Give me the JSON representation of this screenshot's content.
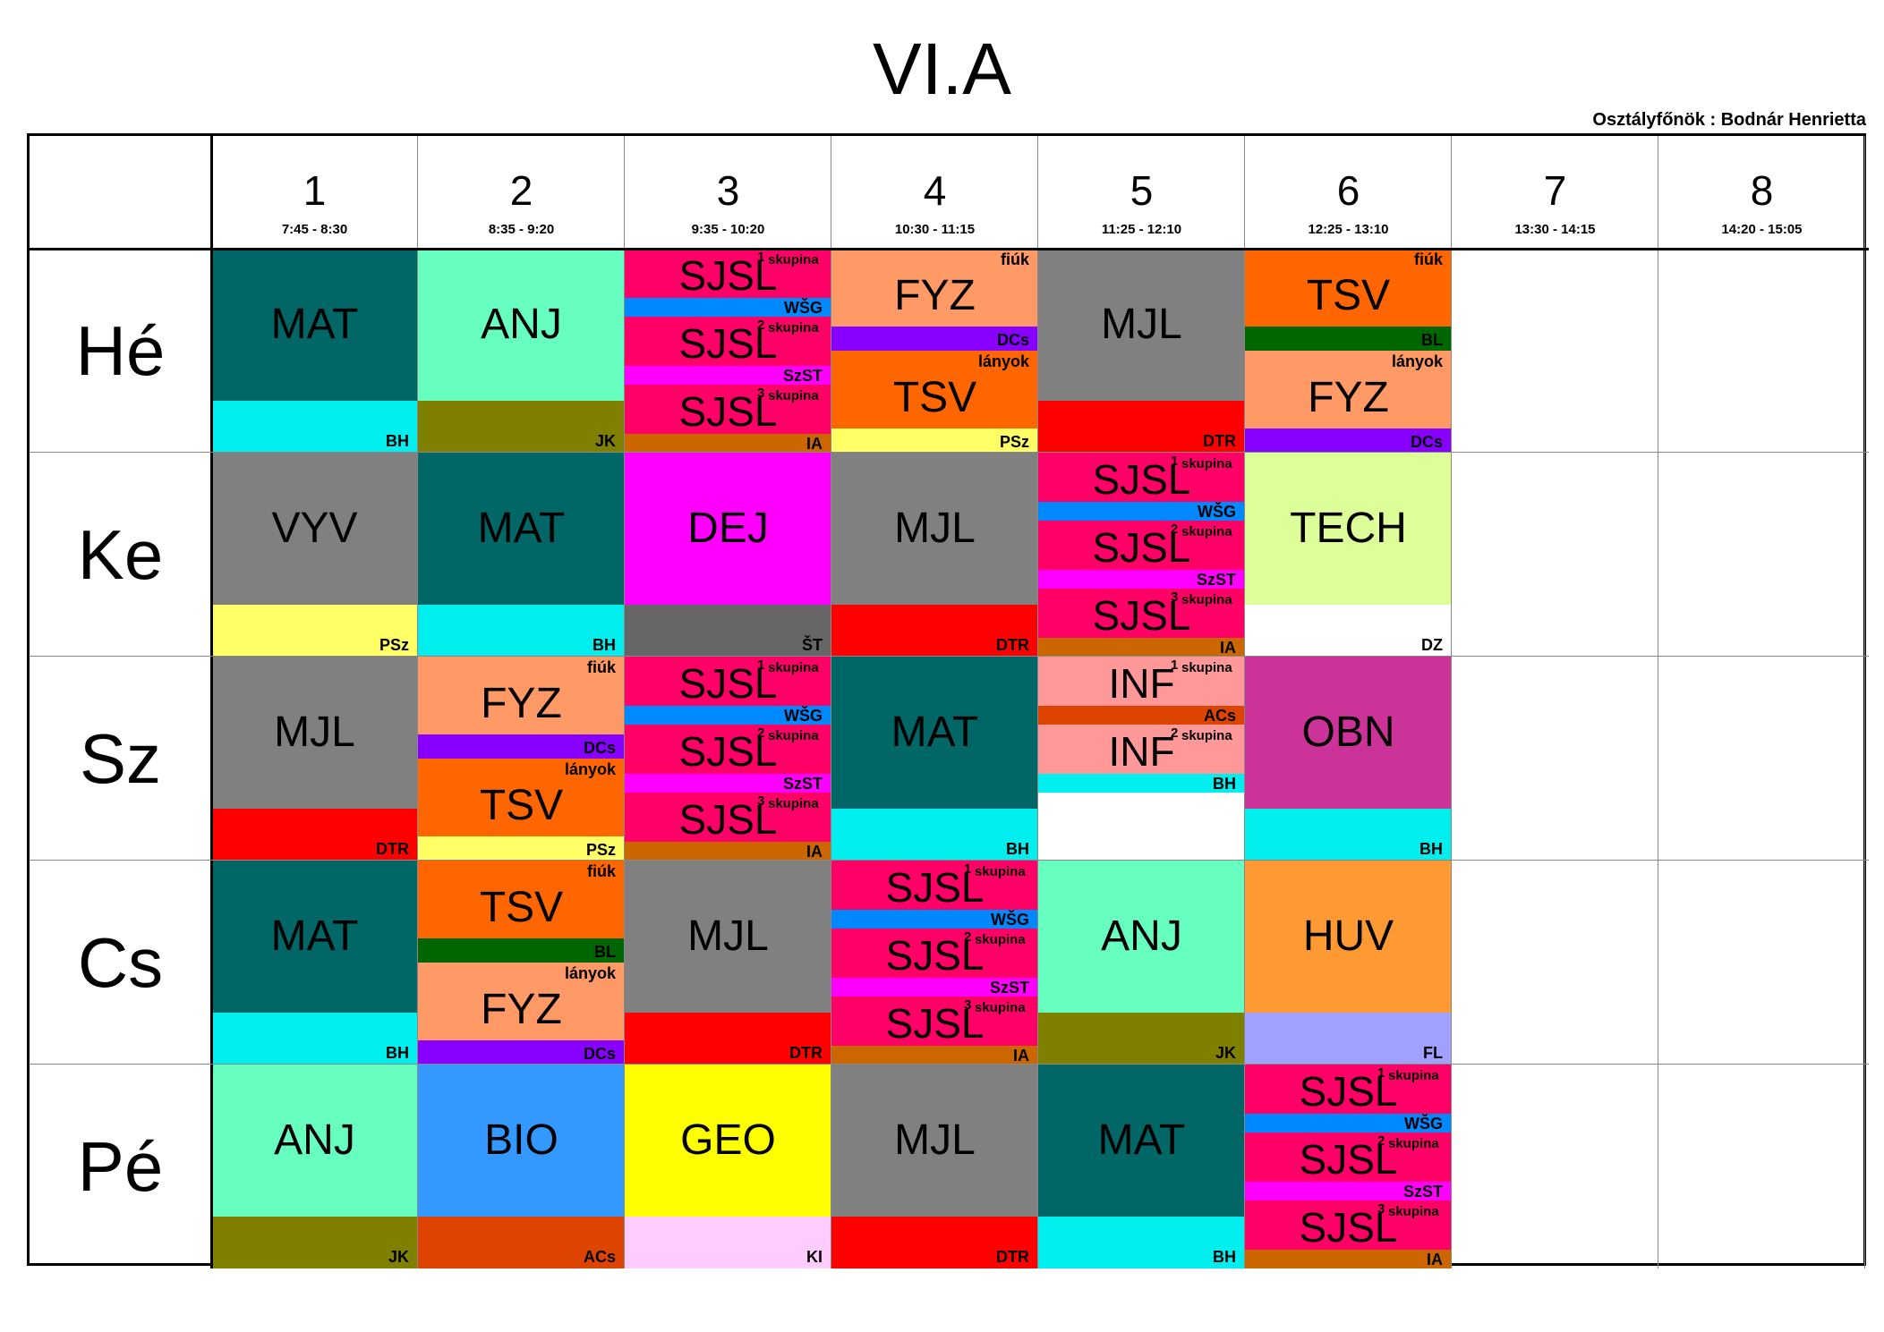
{
  "title": "VI.A",
  "class_teacher": "Osztályfőnök : Bodnár Henrietta",
  "periods": [
    {
      "num": "1",
      "time": "7:45 - 8:30"
    },
    {
      "num": "2",
      "time": "8:35 - 9:20"
    },
    {
      "num": "3",
      "time": "9:35 - 10:20"
    },
    {
      "num": "4",
      "time": "10:30 - 11:15"
    },
    {
      "num": "5",
      "time": "11:25 - 12:10"
    },
    {
      "num": "6",
      "time": "12:25 - 13:10"
    },
    {
      "num": "7",
      "time": "13:30 - 14:15"
    },
    {
      "num": "8",
      "time": "14:20 - 15:05"
    }
  ],
  "days": [
    "Hé",
    "Ke",
    "Sz",
    "Cs",
    "Pé"
  ],
  "group_label": "skupina",
  "colors": {
    "MAT": "#006666",
    "ANJ": "#66ffc0",
    "SJSL": "#ff0066",
    "FYZ": "#ff9966",
    "TSV": "#ff6600",
    "MJL": "#808080",
    "VYV": "#808080",
    "DEJ": "#ff00ff",
    "TECH": "#ddff99",
    "INF": "#ff9999",
    "OBN": "#cc3399",
    "HUV": "#ff9933",
    "BIO": "#3399ff",
    "GEO": "#ffff00",
    "BH": "#00eeee",
    "JK": "#808000",
    "DTR": "#ff0000",
    "PSz": "#ffff66",
    "DCs": "#8800ff",
    "BL": "#006600",
    "WŠG": "#0088ff",
    "SzST": "#ff00ff",
    "IA": "#cc6600",
    "ŠT": "#666666",
    "DZ": "#ffffff",
    "ACs": "#dd4400",
    "FL": "#a0a0ff",
    "KI": "#ffccff"
  },
  "lessons": [
    {
      "day": 0,
      "period": 0,
      "type": "single",
      "subject": "MAT",
      "teacher": "BH"
    },
    {
      "day": 0,
      "period": 1,
      "type": "single",
      "subject": "ANJ",
      "teacher": "JK"
    },
    {
      "day": 0,
      "period": 2,
      "type": "groups3",
      "groups": [
        {
          "num": "1",
          "subject": "SJSL",
          "teacher": "WŠG"
        },
        {
          "num": "2",
          "subject": "SJSL",
          "teacher": "SzST"
        },
        {
          "num": "3",
          "subject": "SJSL",
          "teacher": "IA"
        }
      ]
    },
    {
      "day": 0,
      "period": 3,
      "type": "split",
      "halves": [
        {
          "note": "fiúk",
          "subject": "FYZ",
          "teacher": "DCs"
        },
        {
          "note": "lányok",
          "subject": "TSV",
          "teacher": "PSz"
        }
      ]
    },
    {
      "day": 0,
      "period": 4,
      "type": "single",
      "subject": "MJL",
      "teacher": "DTR"
    },
    {
      "day": 0,
      "period": 5,
      "type": "split",
      "halves": [
        {
          "note": "fiúk",
          "subject": "TSV",
          "teacher": "BL"
        },
        {
          "note": "lányok",
          "subject": "FYZ",
          "teacher": "DCs"
        }
      ]
    },
    {
      "day": 1,
      "period": 0,
      "type": "single",
      "subject": "VYV",
      "teacher": "PSz"
    },
    {
      "day": 1,
      "period": 1,
      "type": "single",
      "subject": "MAT",
      "teacher": "BH"
    },
    {
      "day": 1,
      "period": 2,
      "type": "single",
      "subject": "DEJ",
      "teacher": "ŠT"
    },
    {
      "day": 1,
      "period": 3,
      "type": "single",
      "subject": "MJL",
      "teacher": "DTR"
    },
    {
      "day": 1,
      "period": 4,
      "type": "groups3",
      "groups": [
        {
          "num": "1",
          "subject": "SJSL",
          "teacher": "WŠG"
        },
        {
          "num": "2",
          "subject": "SJSL",
          "teacher": "SzST"
        },
        {
          "num": "3",
          "subject": "SJSL",
          "teacher": "IA"
        }
      ]
    },
    {
      "day": 1,
      "period": 5,
      "type": "single",
      "subject": "TECH",
      "teacher": "DZ"
    },
    {
      "day": 2,
      "period": 0,
      "type": "single",
      "subject": "MJL",
      "teacher": "DTR"
    },
    {
      "day": 2,
      "period": 1,
      "type": "split",
      "halves": [
        {
          "note": "fiúk",
          "subject": "FYZ",
          "teacher": "DCs"
        },
        {
          "note": "lányok",
          "subject": "TSV",
          "teacher": "PSz"
        }
      ]
    },
    {
      "day": 2,
      "period": 2,
      "type": "groups3",
      "groups": [
        {
          "num": "1",
          "subject": "SJSL",
          "teacher": "WŠG"
        },
        {
          "num": "2",
          "subject": "SJSL",
          "teacher": "SzST"
        },
        {
          "num": "3",
          "subject": "SJSL",
          "teacher": "IA"
        }
      ]
    },
    {
      "day": 2,
      "period": 3,
      "type": "single",
      "subject": "MAT",
      "teacher": "BH"
    },
    {
      "day": 2,
      "period": 4,
      "type": "groups2",
      "groups": [
        {
          "num": "1",
          "subject": "INF",
          "teacher": "ACs"
        },
        {
          "num": "2",
          "subject": "INF",
          "teacher": "BH"
        }
      ]
    },
    {
      "day": 2,
      "period": 5,
      "type": "single",
      "subject": "OBN",
      "teacher": "BH"
    },
    {
      "day": 3,
      "period": 0,
      "type": "single",
      "subject": "MAT",
      "teacher": "BH"
    },
    {
      "day": 3,
      "period": 1,
      "type": "split",
      "halves": [
        {
          "note": "fiúk",
          "subject": "TSV",
          "teacher": "BL"
        },
        {
          "note": "lányok",
          "subject": "FYZ",
          "teacher": "DCs"
        }
      ]
    },
    {
      "day": 3,
      "period": 2,
      "type": "single",
      "subject": "MJL",
      "teacher": "DTR"
    },
    {
      "day": 3,
      "period": 3,
      "type": "groups3",
      "groups": [
        {
          "num": "1",
          "subject": "SJSL",
          "teacher": "WŠG"
        },
        {
          "num": "2",
          "subject": "SJSL",
          "teacher": "SzST"
        },
        {
          "num": "3",
          "subject": "SJSL",
          "teacher": "IA"
        }
      ]
    },
    {
      "day": 3,
      "period": 4,
      "type": "single",
      "subject": "ANJ",
      "teacher": "JK"
    },
    {
      "day": 3,
      "period": 5,
      "type": "single",
      "subject": "HUV",
      "teacher": "FL"
    },
    {
      "day": 4,
      "period": 0,
      "type": "single",
      "subject": "ANJ",
      "teacher": "JK"
    },
    {
      "day": 4,
      "period": 1,
      "type": "single",
      "subject": "BIO",
      "teacher": "ACs"
    },
    {
      "day": 4,
      "period": 2,
      "type": "single",
      "subject": "GEO",
      "teacher": "KI"
    },
    {
      "day": 4,
      "period": 3,
      "type": "single",
      "subject": "MJL",
      "teacher": "DTR"
    },
    {
      "day": 4,
      "period": 4,
      "type": "single",
      "subject": "MAT",
      "teacher": "BH"
    },
    {
      "day": 4,
      "period": 5,
      "type": "groups3",
      "groups": [
        {
          "num": "1",
          "subject": "SJSL",
          "teacher": "WŠG"
        },
        {
          "num": "2",
          "subject": "SJSL",
          "teacher": "SzST"
        },
        {
          "num": "3",
          "subject": "SJSL",
          "teacher": "IA"
        }
      ]
    }
  ]
}
